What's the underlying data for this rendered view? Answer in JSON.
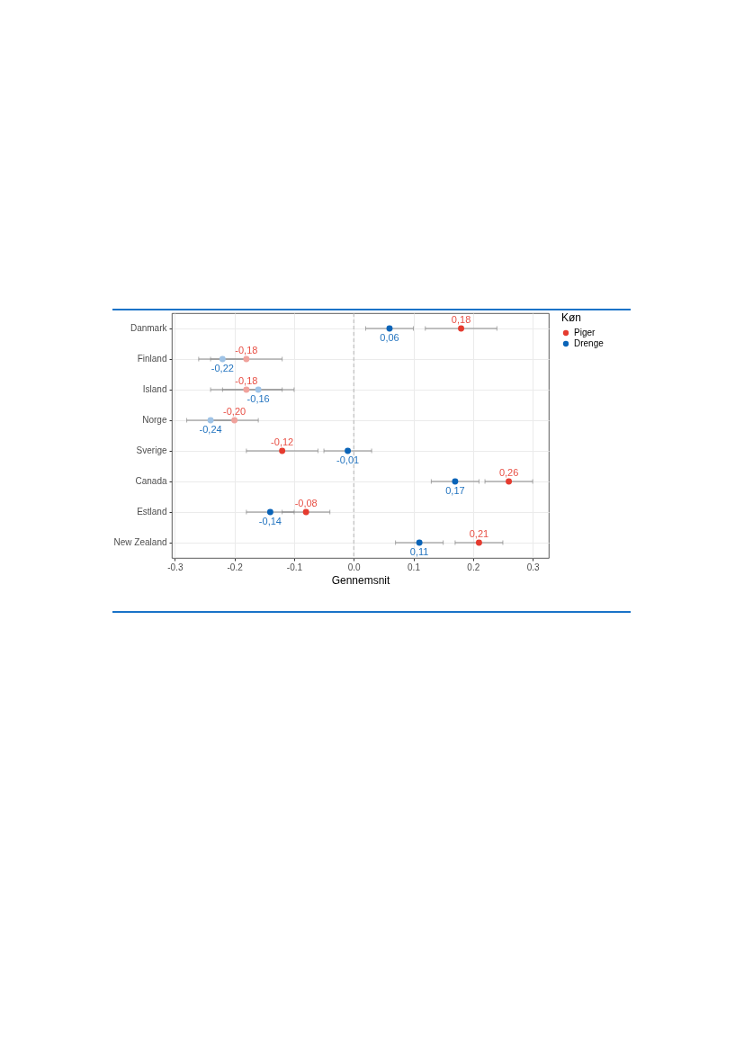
{
  "chart_data": {
    "type": "scatter",
    "orientation": "horizontal",
    "xlabel": "Gennemsnit",
    "legend_title": "Køn",
    "legend": "right",
    "grid": true,
    "marker": "circle",
    "categories": [
      "Danmark",
      "Finland",
      "Island",
      "Norge",
      "Sverige",
      "Canada",
      "Estland",
      "New Zealand"
    ],
    "xlim": [
      -0.305,
      0.327
    ],
    "xticks": [
      {
        "value": -0.3,
        "label": "-0.3"
      },
      {
        "value": -0.2,
        "label": "-0.2"
      },
      {
        "value": -0.1,
        "label": "-0.1"
      },
      {
        "value": 0,
        "label": "0.0"
      },
      {
        "value": 0.1,
        "label": "0.1"
      },
      {
        "value": 0.2,
        "label": "0.2"
      },
      {
        "value": 0.3,
        "label": "0.3"
      }
    ],
    "ref_lines": [
      {
        "axis": "x",
        "value": 0,
        "color": "#a6a6a6",
        "line_style": "dashed"
      }
    ],
    "series": [
      {
        "name": "Piger",
        "color": "#e53b2f",
        "colors": [
          "#e53b2f",
          "#f0a29c",
          "#f0a29c",
          "#f0a29c",
          "#e53b2f",
          "#e53b2f",
          "#e53b2f",
          "#e53b2f"
        ],
        "values": [
          0.18,
          -0.18,
          -0.18,
          -0.2,
          -0.12,
          0.26,
          -0.08,
          0.21
        ],
        "errors": [
          [
            0.12,
            0.24
          ],
          [
            -0.24,
            -0.12
          ],
          [
            -0.24,
            -0.12
          ],
          [
            -0.24,
            -0.16
          ],
          [
            -0.18,
            -0.06
          ],
          [
            0.22,
            0.3
          ],
          [
            -0.12,
            -0.04
          ],
          [
            0.17,
            0.25
          ]
        ],
        "value_labels": [
          "0,18",
          "-0,18",
          "-0,18",
          "-0,20",
          "-0,12",
          "0,26",
          "-0,08",
          "0,21"
        ]
      },
      {
        "name": "Drenge",
        "color": "#0a64b8",
        "colors": [
          "#0a64b8",
          "#9fc3e6",
          "#9fc3e6",
          "#9fc3e6",
          "#0a64b8",
          "#0a64b8",
          "#0a64b8",
          "#0a64b8"
        ],
        "values": [
          0.06,
          -0.22,
          -0.16,
          -0.24,
          -0.01,
          0.17,
          -0.14,
          0.11
        ],
        "errors": [
          [
            0.02,
            0.1
          ],
          [
            -0.26,
            -0.18
          ],
          [
            -0.22,
            -0.1
          ],
          [
            -0.28,
            -0.2
          ],
          [
            -0.05,
            0.03
          ],
          [
            0.13,
            0.21
          ],
          [
            -0.18,
            -0.1
          ],
          [
            0.07,
            0.15
          ]
        ],
        "value_labels": [
          "0,06",
          "-0,22",
          "-0,16",
          "-0,24",
          "-0,01",
          "0,17",
          "-0,14",
          "0,11"
        ]
      }
    ]
  }
}
